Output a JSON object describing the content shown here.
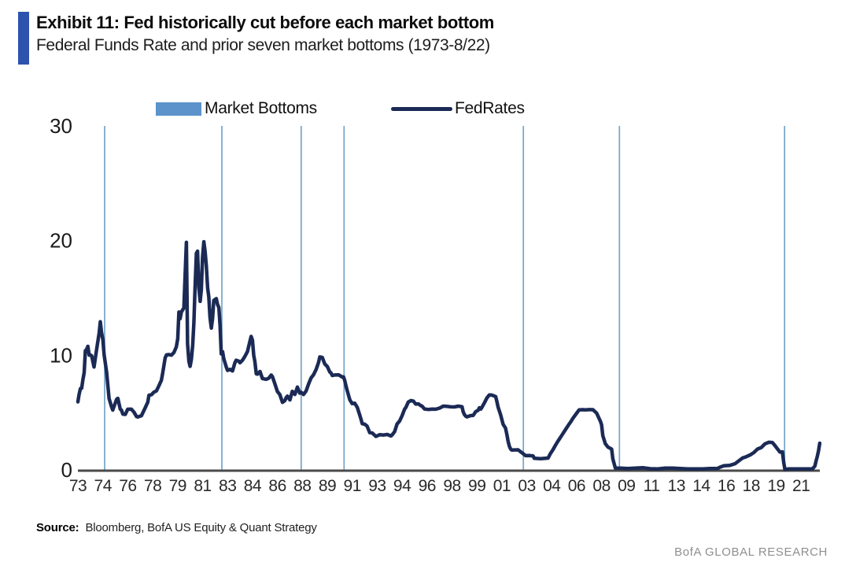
{
  "footer": {
    "source_label": "Source:",
    "source_text": "Bloomberg, BofA US Equity & Quant Strategy",
    "brand": "BofA GLOBAL RESEARCH"
  },
  "colors": {
    "accent_bar": "#2d53ad",
    "legend_swatch": "#5b93ca",
    "market_bottom_line": "#74a5c9",
    "fedrates_line": "#1b2a55",
    "axis_line": "#4a4a4a"
  },
  "chart_data": {
    "type": "line",
    "title": "Exhibit 11: Fed historically cut before each market bottom",
    "subtitle": "Federal Funds Rate and prior seven market bottoms (1973-8/22)",
    "xlabel": "",
    "ylabel": "",
    "ylim": [
      0,
      30
    ],
    "yticks": [
      0,
      10,
      20,
      30
    ],
    "x_range_years": [
      1973.0,
      2022.667
    ],
    "xtick_interval_months": 20,
    "xtick_labels": [
      "73",
      "74",
      "76",
      "78",
      "79",
      "81",
      "83",
      "84",
      "86",
      "88",
      "89",
      "91",
      "93",
      "94",
      "96",
      "98",
      "99",
      "01",
      "03",
      "04",
      "06",
      "08",
      "09",
      "11",
      "13",
      "14",
      "16",
      "18",
      "19",
      "21"
    ],
    "grid": false,
    "legend_position": "top",
    "series": [
      {
        "name": "Market Bottoms",
        "type": "vline",
        "x": [
          1974.79,
          1982.62,
          1987.92,
          1990.79,
          2002.77,
          2009.19,
          2020.23
        ]
      },
      {
        "name": "FedRates",
        "type": "line",
        "points": [
          [
            1973.0,
            5.94
          ],
          [
            1973.08,
            6.58
          ],
          [
            1973.17,
            7.09
          ],
          [
            1973.25,
            7.12
          ],
          [
            1973.33,
            7.84
          ],
          [
            1973.42,
            8.49
          ],
          [
            1973.5,
            10.4
          ],
          [
            1973.58,
            10.5
          ],
          [
            1973.67,
            10.78
          ],
          [
            1973.75,
            10.01
          ],
          [
            1973.83,
            10.03
          ],
          [
            1973.92,
            9.95
          ],
          [
            1974.08,
            8.97
          ],
          [
            1974.25,
            10.51
          ],
          [
            1974.42,
            11.93
          ],
          [
            1974.5,
            12.92
          ],
          [
            1974.58,
            12.01
          ],
          [
            1974.67,
            11.34
          ],
          [
            1974.75,
            10.06
          ],
          [
            1974.92,
            8.53
          ],
          [
            1975.08,
            6.24
          ],
          [
            1975.25,
            5.49
          ],
          [
            1975.33,
            5.22
          ],
          [
            1975.58,
            6.14
          ],
          [
            1975.67,
            6.24
          ],
          [
            1975.83,
            5.31
          ],
          [
            1975.92,
            5.2
          ],
          [
            1976.0,
            4.87
          ],
          [
            1976.17,
            4.84
          ],
          [
            1976.33,
            5.29
          ],
          [
            1976.58,
            5.29
          ],
          [
            1976.75,
            5.03
          ],
          [
            1976.92,
            4.65
          ],
          [
            1977.0,
            4.61
          ],
          [
            1977.25,
            4.73
          ],
          [
            1977.5,
            5.42
          ],
          [
            1977.67,
            5.9
          ],
          [
            1977.75,
            6.51
          ],
          [
            1977.92,
            6.56
          ],
          [
            1978.08,
            6.78
          ],
          [
            1978.25,
            6.89
          ],
          [
            1978.42,
            7.36
          ],
          [
            1978.58,
            7.81
          ],
          [
            1978.67,
            8.45
          ],
          [
            1978.83,
            9.76
          ],
          [
            1978.92,
            10.03
          ],
          [
            1979.08,
            10.06
          ],
          [
            1979.25,
            10.01
          ],
          [
            1979.42,
            10.24
          ],
          [
            1979.58,
            10.72
          ],
          [
            1979.67,
            11.43
          ],
          [
            1979.75,
            13.77
          ],
          [
            1979.83,
            13.18
          ],
          [
            1979.92,
            13.78
          ],
          [
            1980.08,
            14.13
          ],
          [
            1980.17,
            17.19
          ],
          [
            1980.25,
            19.85
          ],
          [
            1980.33,
            10.98
          ],
          [
            1980.42,
            9.47
          ],
          [
            1980.5,
            9.03
          ],
          [
            1980.58,
            9.61
          ],
          [
            1980.67,
            10.87
          ],
          [
            1980.75,
            12.81
          ],
          [
            1980.83,
            15.85
          ],
          [
            1980.92,
            18.9
          ],
          [
            1981.0,
            19.08
          ],
          [
            1981.08,
            15.93
          ],
          [
            1981.17,
            14.7
          ],
          [
            1981.25,
            15.72
          ],
          [
            1981.33,
            18.52
          ],
          [
            1981.42,
            19.9
          ],
          [
            1981.5,
            19.04
          ],
          [
            1981.58,
            17.82
          ],
          [
            1981.67,
            15.87
          ],
          [
            1981.75,
            15.08
          ],
          [
            1981.83,
            13.31
          ],
          [
            1981.92,
            12.37
          ],
          [
            1982.0,
            13.22
          ],
          [
            1982.08,
            14.78
          ],
          [
            1982.25,
            14.94
          ],
          [
            1982.33,
            14.45
          ],
          [
            1982.42,
            14.15
          ],
          [
            1982.5,
            12.59
          ],
          [
            1982.58,
            10.12
          ],
          [
            1982.67,
            10.31
          ],
          [
            1982.75,
            9.71
          ],
          [
            1982.92,
            8.95
          ],
          [
            1983.0,
            8.68
          ],
          [
            1983.17,
            8.77
          ],
          [
            1983.33,
            8.63
          ],
          [
            1983.5,
            9.37
          ],
          [
            1983.58,
            9.56
          ],
          [
            1983.75,
            9.48
          ],
          [
            1983.83,
            9.34
          ],
          [
            1983.92,
            9.47
          ],
          [
            1984.0,
            9.56
          ],
          [
            1984.17,
            9.91
          ],
          [
            1984.33,
            10.32
          ],
          [
            1984.5,
            11.23
          ],
          [
            1984.58,
            11.64
          ],
          [
            1984.67,
            11.3
          ],
          [
            1984.75,
            9.99
          ],
          [
            1984.83,
            9.43
          ],
          [
            1984.92,
            8.38
          ],
          [
            1985.0,
            8.35
          ],
          [
            1985.17,
            8.58
          ],
          [
            1985.33,
            7.97
          ],
          [
            1985.58,
            7.9
          ],
          [
            1985.75,
            7.99
          ],
          [
            1985.92,
            8.27
          ],
          [
            1986.0,
            8.14
          ],
          [
            1986.17,
            7.48
          ],
          [
            1986.33,
            6.85
          ],
          [
            1986.5,
            6.56
          ],
          [
            1986.67,
            5.89
          ],
          [
            1986.83,
            6.04
          ],
          [
            1986.92,
            6.3
          ],
          [
            1987.0,
            6.43
          ],
          [
            1987.17,
            6.1
          ],
          [
            1987.33,
            6.85
          ],
          [
            1987.5,
            6.58
          ],
          [
            1987.67,
            7.22
          ],
          [
            1987.83,
            6.69
          ],
          [
            1987.92,
            6.77
          ],
          [
            1988.08,
            6.58
          ],
          [
            1988.25,
            6.87
          ],
          [
            1988.42,
            7.51
          ],
          [
            1988.58,
            8.01
          ],
          [
            1988.75,
            8.3
          ],
          [
            1988.92,
            8.76
          ],
          [
            1989.08,
            9.36
          ],
          [
            1989.17,
            9.85
          ],
          [
            1989.33,
            9.81
          ],
          [
            1989.5,
            9.24
          ],
          [
            1989.67,
            9.02
          ],
          [
            1989.83,
            8.55
          ],
          [
            1989.92,
            8.45
          ],
          [
            1990.0,
            8.23
          ],
          [
            1990.17,
            8.28
          ],
          [
            1990.42,
            8.29
          ],
          [
            1990.67,
            8.1
          ],
          [
            1990.75,
            8.11
          ],
          [
            1990.83,
            7.81
          ],
          [
            1990.92,
            7.31
          ],
          [
            1991.0,
            6.91
          ],
          [
            1991.17,
            6.12
          ],
          [
            1991.33,
            5.78
          ],
          [
            1991.5,
            5.82
          ],
          [
            1991.67,
            5.45
          ],
          [
            1991.83,
            4.81
          ],
          [
            1991.92,
            4.43
          ],
          [
            1992.0,
            4.03
          ],
          [
            1992.17,
            3.98
          ],
          [
            1992.33,
            3.82
          ],
          [
            1992.5,
            3.25
          ],
          [
            1992.67,
            3.22
          ],
          [
            1992.92,
            2.92
          ],
          [
            1993.17,
            3.07
          ],
          [
            1993.42,
            3.04
          ],
          [
            1993.67,
            3.09
          ],
          [
            1993.92,
            2.96
          ],
          [
            1994.0,
            3.05
          ],
          [
            1994.17,
            3.34
          ],
          [
            1994.33,
            4.01
          ],
          [
            1994.5,
            4.26
          ],
          [
            1994.67,
            4.73
          ],
          [
            1994.83,
            5.29
          ],
          [
            1994.92,
            5.45
          ],
          [
            1995.08,
            5.92
          ],
          [
            1995.25,
            6.05
          ],
          [
            1995.42,
            6.0
          ],
          [
            1995.58,
            5.74
          ],
          [
            1995.75,
            5.76
          ],
          [
            1995.92,
            5.6
          ],
          [
            1996.0,
            5.56
          ],
          [
            1996.17,
            5.31
          ],
          [
            1996.42,
            5.27
          ],
          [
            1996.67,
            5.3
          ],
          [
            1996.92,
            5.29
          ],
          [
            1997.17,
            5.39
          ],
          [
            1997.42,
            5.56
          ],
          [
            1997.67,
            5.54
          ],
          [
            1997.92,
            5.5
          ],
          [
            1998.17,
            5.49
          ],
          [
            1998.42,
            5.56
          ],
          [
            1998.67,
            5.51
          ],
          [
            1998.75,
            5.07
          ],
          [
            1998.83,
            4.83
          ],
          [
            1998.92,
            4.68
          ],
          [
            1999.0,
            4.63
          ],
          [
            1999.25,
            4.74
          ],
          [
            1999.42,
            4.76
          ],
          [
            1999.58,
            5.07
          ],
          [
            1999.75,
            5.2
          ],
          [
            1999.83,
            5.42
          ],
          [
            1999.92,
            5.3
          ],
          [
            2000.0,
            5.45
          ],
          [
            2000.17,
            5.85
          ],
          [
            2000.33,
            6.27
          ],
          [
            2000.5,
            6.54
          ],
          [
            2000.67,
            6.52
          ],
          [
            2000.92,
            6.4
          ],
          [
            2001.0,
            5.98
          ],
          [
            2001.08,
            5.49
          ],
          [
            2001.25,
            4.8
          ],
          [
            2001.42,
            3.97
          ],
          [
            2001.58,
            3.65
          ],
          [
            2001.67,
            3.07
          ],
          [
            2001.75,
            2.49
          ],
          [
            2001.83,
            2.09
          ],
          [
            2001.92,
            1.82
          ],
          [
            2002.0,
            1.73
          ],
          [
            2002.42,
            1.75
          ],
          [
            2002.83,
            1.34
          ],
          [
            2002.92,
            1.24
          ],
          [
            2003.17,
            1.25
          ],
          [
            2003.42,
            1.22
          ],
          [
            2003.5,
            1.01
          ],
          [
            2003.92,
            0.98
          ],
          [
            2004.17,
            1.0
          ],
          [
            2004.42,
            1.03
          ],
          [
            2004.58,
            1.43
          ],
          [
            2004.75,
            1.76
          ],
          [
            2004.92,
            2.16
          ],
          [
            2005.08,
            2.5
          ],
          [
            2005.33,
            3.0
          ],
          [
            2005.58,
            3.5
          ],
          [
            2005.83,
            4.0
          ],
          [
            2005.92,
            4.16
          ],
          [
            2006.08,
            4.49
          ],
          [
            2006.33,
            4.94
          ],
          [
            2006.5,
            5.24
          ],
          [
            2006.75,
            5.25
          ],
          [
            2006.92,
            5.24
          ],
          [
            2007.17,
            5.26
          ],
          [
            2007.42,
            5.25
          ],
          [
            2007.67,
            4.94
          ],
          [
            2007.83,
            4.49
          ],
          [
            2007.92,
            4.24
          ],
          [
            2008.0,
            3.94
          ],
          [
            2008.08,
            2.98
          ],
          [
            2008.25,
            2.28
          ],
          [
            2008.42,
            2.0
          ],
          [
            2008.67,
            1.81
          ],
          [
            2008.75,
            0.97
          ],
          [
            2008.92,
            0.16
          ],
          [
            2009.25,
            0.15
          ],
          [
            2009.75,
            0.12
          ],
          [
            2010.25,
            0.16
          ],
          [
            2010.75,
            0.19
          ],
          [
            2011.25,
            0.1
          ],
          [
            2011.75,
            0.08
          ],
          [
            2012.25,
            0.15
          ],
          [
            2012.75,
            0.16
          ],
          [
            2013.25,
            0.12
          ],
          [
            2013.75,
            0.09
          ],
          [
            2014.25,
            0.09
          ],
          [
            2014.75,
            0.09
          ],
          [
            2015.25,
            0.12
          ],
          [
            2015.75,
            0.13
          ],
          [
            2015.92,
            0.24
          ],
          [
            2016.17,
            0.36
          ],
          [
            2016.58,
            0.4
          ],
          [
            2016.92,
            0.54
          ],
          [
            2017.17,
            0.79
          ],
          [
            2017.42,
            1.04
          ],
          [
            2017.67,
            1.15
          ],
          [
            2017.92,
            1.3
          ],
          [
            2018.17,
            1.51
          ],
          [
            2018.42,
            1.82
          ],
          [
            2018.67,
            1.95
          ],
          [
            2018.92,
            2.27
          ],
          [
            2019.17,
            2.41
          ],
          [
            2019.42,
            2.38
          ],
          [
            2019.58,
            2.13
          ],
          [
            2019.75,
            1.83
          ],
          [
            2019.92,
            1.55
          ],
          [
            2020.0,
            1.55
          ],
          [
            2020.08,
            1.58
          ],
          [
            2020.17,
            0.65
          ],
          [
            2020.25,
            0.05
          ],
          [
            2020.5,
            0.09
          ],
          [
            2020.92,
            0.09
          ],
          [
            2021.42,
            0.08
          ],
          [
            2021.92,
            0.08
          ],
          [
            2022.08,
            0.08
          ],
          [
            2022.17,
            0.2
          ],
          [
            2022.25,
            0.33
          ],
          [
            2022.33,
            0.77
          ],
          [
            2022.42,
            1.21
          ],
          [
            2022.5,
            1.68
          ],
          [
            2022.58,
            2.33
          ]
        ]
      }
    ]
  }
}
